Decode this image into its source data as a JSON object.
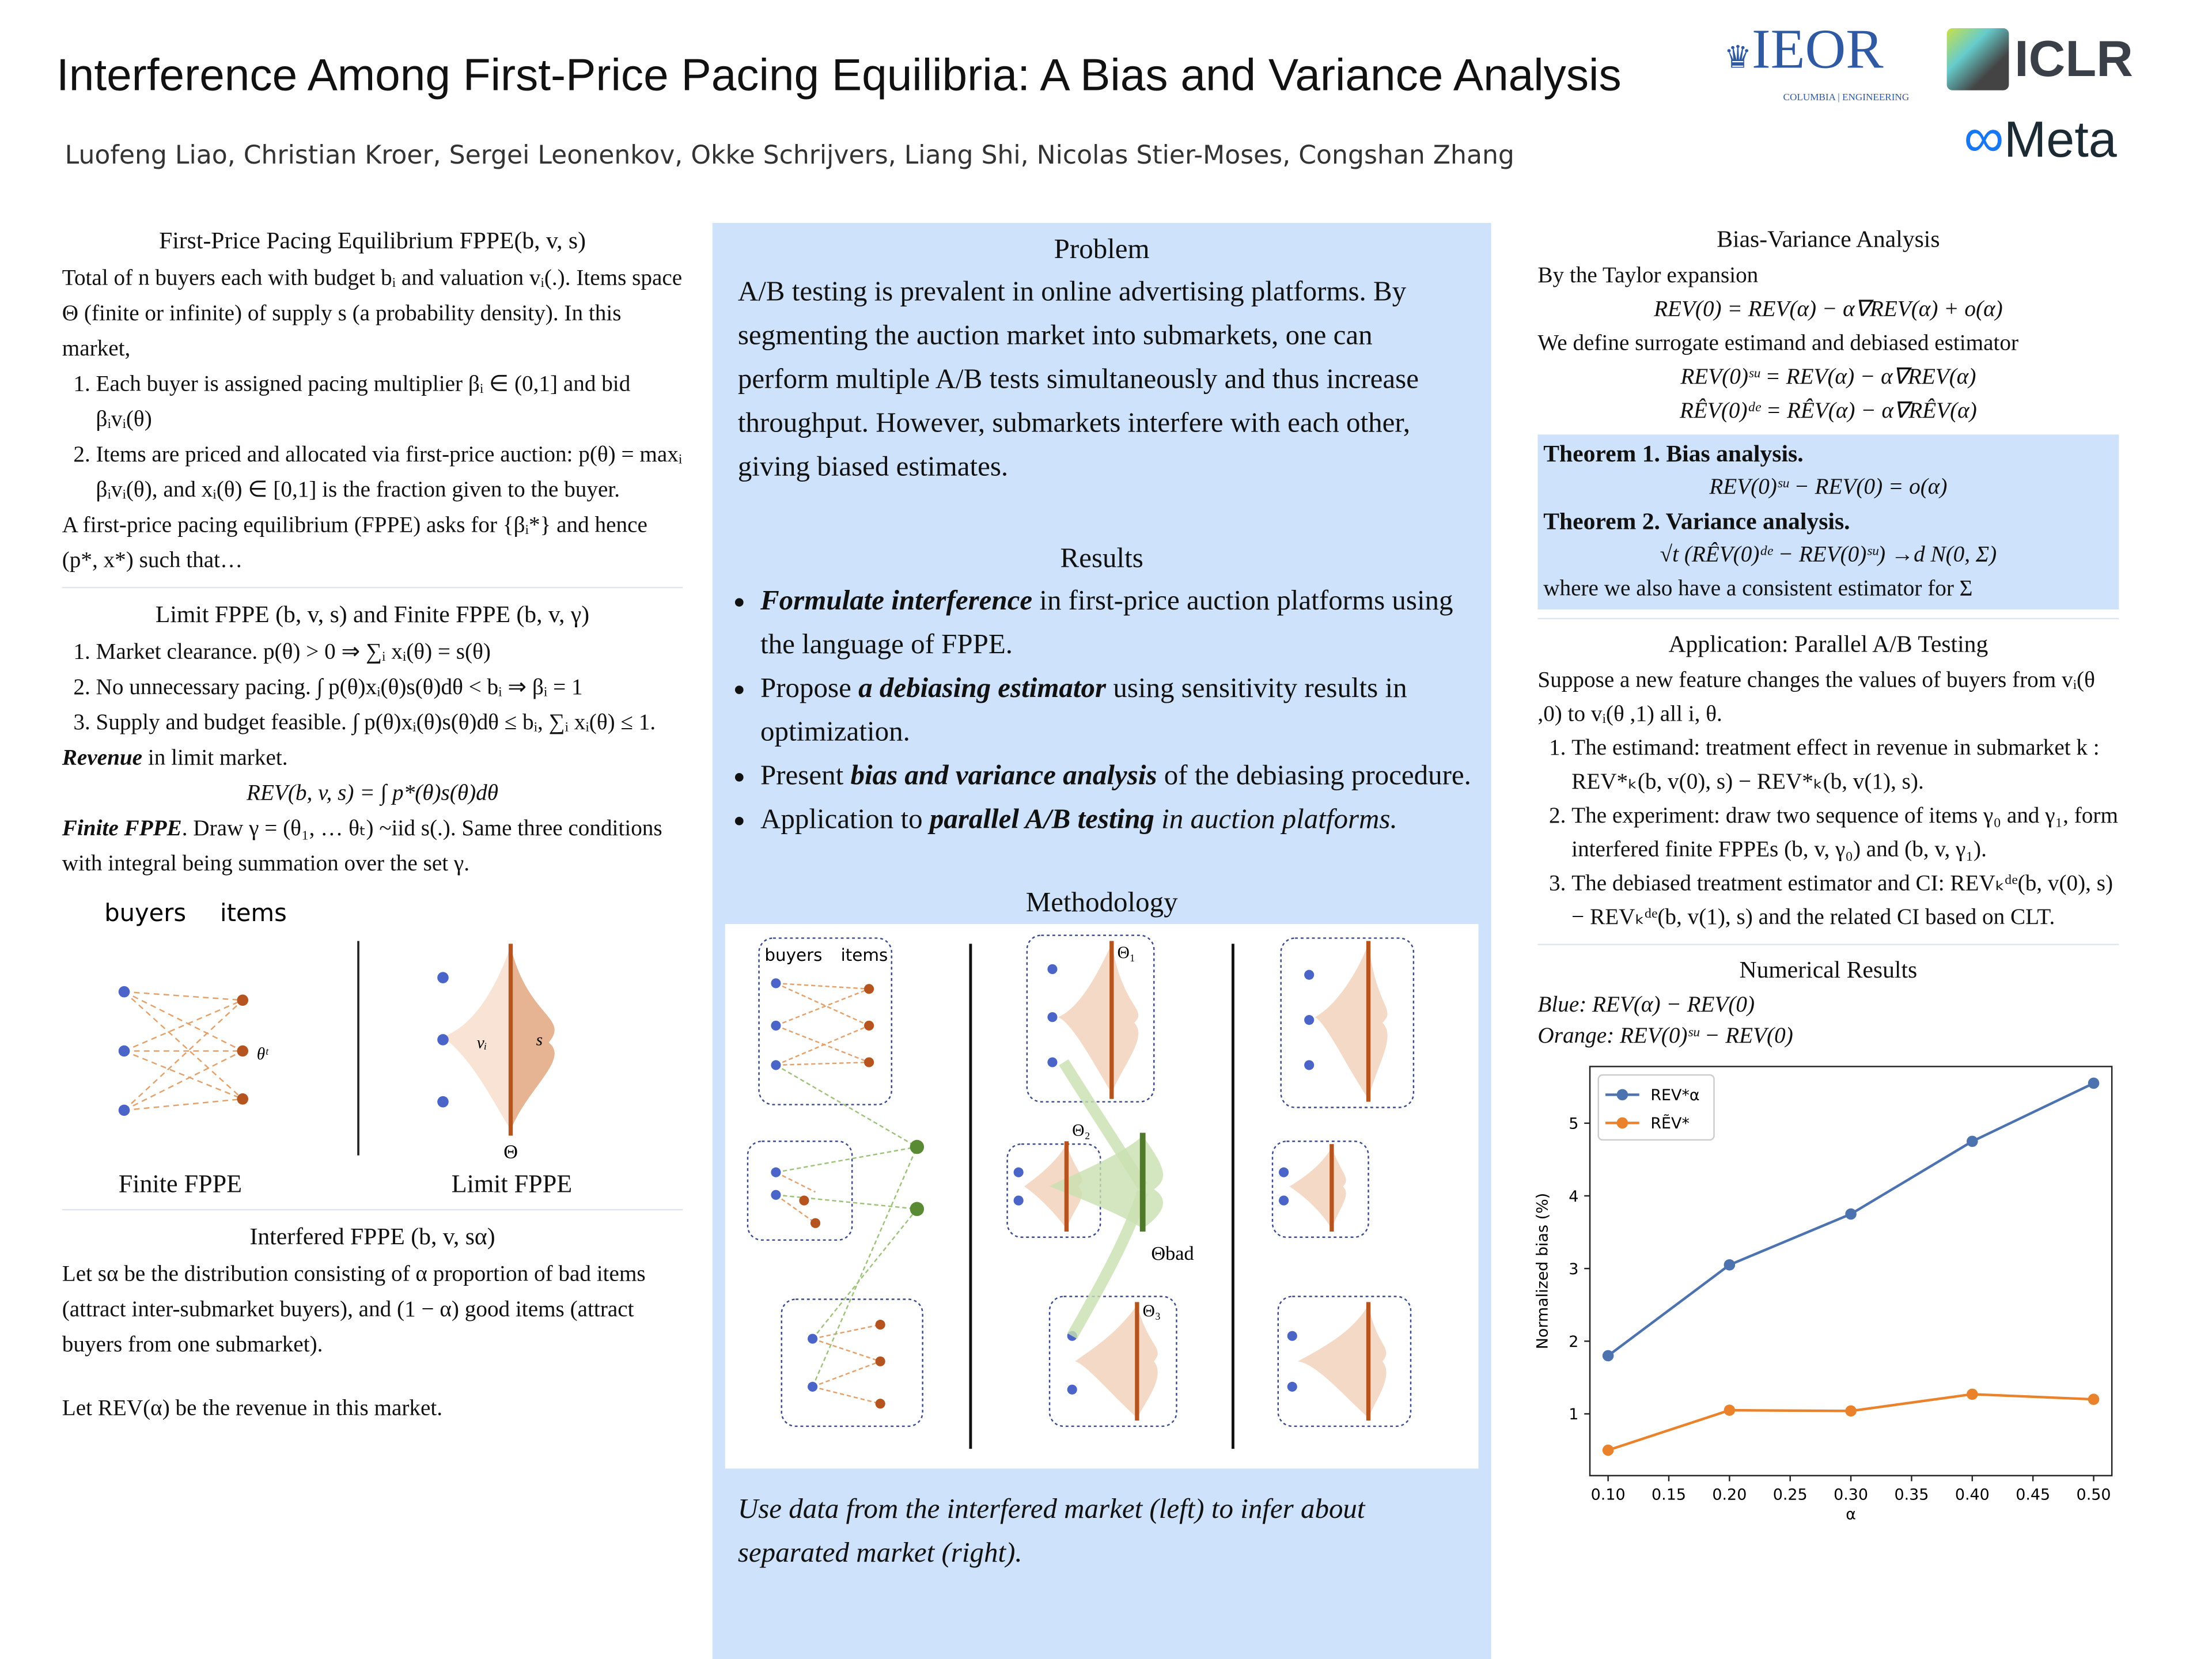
{
  "title": "Interference Among First-Price Pacing Equilibria: A Bias and Variance Analysis",
  "authors": "Luofeng Liao, Christian Kroer, Sergei Leonenkov, Okke Schrijvers, Liang Shi, Nicolas Stier-Moses, Congshan Zhang",
  "logos": {
    "ieor": "IEOR",
    "ieor_sub": "COLUMBIA | ENGINEERING",
    "iclr": "ICLR",
    "meta": "Meta"
  },
  "left": {
    "s1_title": "First-Price Pacing Equilibrium FPPE(b, v, s)",
    "s1_intro": "Total of n buyers each with budget bᵢ and valuation vᵢ(.). Items space Θ (finite or infinite) of supply s (a probability density). In this market,",
    "s1_items": [
      "Each buyer is assigned pacing multiplier βᵢ ∈ (0,1] and bid βᵢvᵢ(θ)",
      "Items are priced and allocated via first-price auction: p(θ) = maxᵢ βᵢvᵢ(θ),  and xᵢ(θ) ∈ [0,1] is the fraction given to the buyer."
    ],
    "s1_outro": "A first-price pacing equilibrium (FPPE) asks for {βᵢ*} and hence (p*, x*) such that…",
    "s2_title": "Limit FPPE (b, v, s) and Finite FPPE (b, v, γ)",
    "s2_items": [
      "Market clearance. p(θ) > 0 ⇒ ∑ᵢ xᵢ(θ) = s(θ)",
      "No unnecessary pacing. ∫ p(θ)xᵢ(θ)s(θ)dθ < bᵢ ⇒ βᵢ = 1",
      "Supply and budget feasible. ∫ p(θ)xᵢ(θ)s(θ)dθ ≤ bᵢ, ∑ᵢ xᵢ(θ) ≤ 1."
    ],
    "rev_bold": "Revenue",
    "rev_text": " in limit market.",
    "rev_eq": "REV(b, v, s) = ∫ p*(θ)s(θ)dθ",
    "finite_bold": "Finite FPPE",
    "finite_text": ". Draw γ = (θ₁, … θₜ) ~iid s(.).  Same three conditions with integral being summation over the set γ.",
    "fig": {
      "buyers": "buyers",
      "items": "items",
      "theta_tau": "θᵗ",
      "vi": "vᵢ",
      "s": "s",
      "theta": "Θ",
      "finite_label": "Finite FPPE",
      "limit_label": "Limit FPPE"
    },
    "s3_title": "Interfered FPPE (b, v, sα)",
    "s3_p1": "Let sα  be the distribution consisting of α proportion of bad items (attract inter-submarket buyers), and (1 − α) good items (attract buyers from one submarket).",
    "s3_p2": "Let REV(α) be the revenue in this market."
  },
  "middle": {
    "problem_title": "Problem",
    "problem_text": "A/B testing is prevalent in online advertising platforms. By segmenting the auction market into submarkets, one can perform multiple A/B tests simultaneously and thus increase throughput. However, submarkets interfere with each other, giving biased estimates.",
    "results_title": "Results",
    "results": [
      {
        "pre": "",
        "bold": "Formulate interference",
        "post": " in first-price auction platforms using the language of FPPE."
      },
      {
        "pre": "Propose ",
        "bold": "a debiasing estimator",
        "post": " using sensitivity results in optimization."
      },
      {
        "pre": "Present ",
        "bold": "bias and variance analysis",
        "post": " of the debiasing procedure."
      },
      {
        "pre": "Application to ",
        "bold": "parallel A/B testing",
        "post": " in auction platforms."
      }
    ],
    "method_title": "Methodology",
    "diagram": {
      "buyers": "buyers",
      "items": "items",
      "theta1": "Θ₁",
      "theta2": "Θ₂",
      "theta3": "Θ₃",
      "theta_bad": "Θbad"
    },
    "caption": "Use data from the interfered market (left) to infer about separated market (right)."
  },
  "right": {
    "bv_title": "Bias-Variance Analysis",
    "taylor": "By the Taylor expansion",
    "eq1": "REV(0) = REV(α) − α∇REV(α) + o(α)",
    "define": "We define surrogate estimand and debiased estimator",
    "eq2": "REV(0)ˢᵘ = REV(α) − α∇REV(α)",
    "eq3": "RÊV(0)ᵈᵉ = RÊV(α) − α∇RÊV(α)",
    "thm1": "Theorem 1. Bias analysis.",
    "thm1_eq": "REV(0)ˢᵘ − REV(0) = o(α)",
    "thm2": "Theorem 2. Variance analysis.",
    "thm2_eq": "√t (RÊV(0)ᵈᵉ − REV(0)ˢᵘ) →d N(0, Σ)",
    "thm2_note": "where we also have a consistent estimator for Σ",
    "app_title": "Application: Parallel A/B Testing",
    "app_intro": "Suppose a new feature changes the values of buyers from vᵢ(θ ,0) to vᵢ(θ ,1) all i, θ.",
    "app_items": [
      "The estimand: treatment effect in revenue in submarket k : REV*ₖ(b, v(0), s) − REV*ₖ(b, v(1), s).",
      "The experiment: draw two sequence of items γ₀ and γ₁, form interfered finite FPPEs (b, v, γ₀) and (b, v, γ₁).",
      "The debiased treatment estimator and CI: REVₖᵈᵉ(b, v(0), s) − REVₖᵈᵉ(b, v(1), s) and the related CI based on CLT."
    ],
    "num_title": "Numerical Results",
    "blue_label": "Blue: REV(α) − REV(0)",
    "orange_label": "Orange: REV(0)ˢᵘ − REV(0)"
  },
  "chart_data": {
    "type": "line",
    "x": [
      0.1,
      0.2,
      0.3,
      0.4,
      0.5
    ],
    "series": [
      {
        "name": "REV*α",
        "color": "#4c72b0",
        "values": [
          1.8,
          3.05,
          3.75,
          4.75,
          5.55
        ]
      },
      {
        "name": "RẼV*",
        "color": "#e9822a",
        "values": [
          0.5,
          1.05,
          1.04,
          1.27,
          1.2
        ]
      }
    ],
    "xlabel": "α",
    "ylabel": "Normalized bias (%)",
    "xticks": [
      "0.10",
      "0.15",
      "0.20",
      "0.25",
      "0.30",
      "0.35",
      "0.40",
      "0.45",
      "0.50"
    ],
    "yticks": [
      "1",
      "2",
      "3",
      "4",
      "5"
    ],
    "xlim": [
      0.085,
      0.515
    ],
    "ylim": [
      0.15,
      5.78
    ],
    "legend": "top-left",
    "grid": false
  }
}
